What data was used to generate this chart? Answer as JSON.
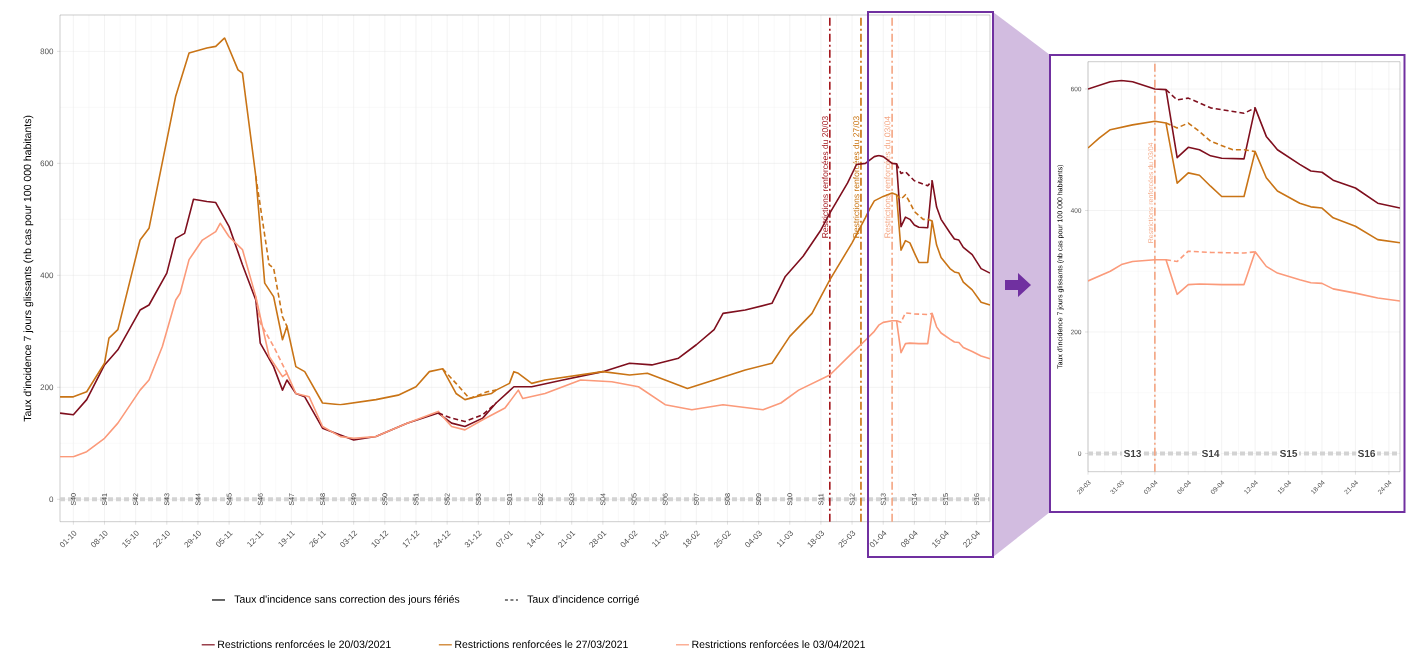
{
  "chart_data": [
    {
      "type": "line",
      "ylabel": "Taux d'incidence 7 jours glissants (nb cas pour 100 000 habitants)",
      "xlim": [
        "2020-09-28",
        "2021-04-25"
      ],
      "ylim": [
        -40,
        865
      ],
      "xticks": [
        {
          "value": "2020-10-01",
          "label": "01-10"
        },
        {
          "value": "2020-10-08",
          "label": "08-10"
        },
        {
          "value": "2020-10-15",
          "label": "15-10"
        },
        {
          "value": "2020-10-22",
          "label": "22-10"
        },
        {
          "value": "2020-10-29",
          "label": "29-10"
        },
        {
          "value": "2020-11-05",
          "label": "05-11"
        },
        {
          "value": "2020-11-12",
          "label": "12-11"
        },
        {
          "value": "2020-11-19",
          "label": "19-11"
        },
        {
          "value": "2020-11-26",
          "label": "26-11"
        },
        {
          "value": "2020-12-03",
          "label": "03-12"
        },
        {
          "value": "2020-12-10",
          "label": "10-12"
        },
        {
          "value": "2020-12-17",
          "label": "17-12"
        },
        {
          "value": "2020-12-24",
          "label": "24-12"
        },
        {
          "value": "2020-12-31",
          "label": "31-12"
        },
        {
          "value": "2021-01-07",
          "label": "07-01"
        },
        {
          "value": "2021-01-14",
          "label": "14-01"
        },
        {
          "value": "2021-01-21",
          "label": "21-01"
        },
        {
          "value": "2021-01-28",
          "label": "28-01"
        },
        {
          "value": "2021-02-04",
          "label": "04-02"
        },
        {
          "value": "2021-02-11",
          "label": "11-02"
        },
        {
          "value": "2021-02-18",
          "label": "18-02"
        },
        {
          "value": "2021-02-25",
          "label": "25-02"
        },
        {
          "value": "2021-03-04",
          "label": "04-03"
        },
        {
          "value": "2021-03-11",
          "label": "11-03"
        },
        {
          "value": "2021-03-18",
          "label": "18-03"
        },
        {
          "value": "2021-03-25",
          "label": "25-03"
        },
        {
          "value": "2021-04-01",
          "label": "01-04"
        },
        {
          "value": "2021-04-08",
          "label": "08-04"
        },
        {
          "value": "2021-04-15",
          "label": "15-04"
        },
        {
          "value": "2021-04-22",
          "label": "22-04"
        }
      ],
      "yticks": [
        0,
        200,
        400,
        600,
        800
      ],
      "x2lim": [
        "2020-09-28",
        "2021-04-25"
      ],
      "x2ticks": [
        {
          "value": "2020-10-01",
          "label": "S40"
        },
        {
          "value": "2020-10-08",
          "label": "S41"
        },
        {
          "value": "2020-10-15",
          "label": "S42"
        },
        {
          "value": "2020-10-22",
          "label": "S43"
        },
        {
          "value": "2020-10-29",
          "label": "S44"
        },
        {
          "value": "2020-11-05",
          "label": "S45"
        },
        {
          "value": "2020-11-12",
          "label": "S46"
        },
        {
          "value": "2020-11-19",
          "label": "S47"
        },
        {
          "value": "2020-11-26",
          "label": "S48"
        },
        {
          "value": "2020-12-03",
          "label": "S49"
        },
        {
          "value": "2020-12-10",
          "label": "S50"
        },
        {
          "value": "2020-12-17",
          "label": "S51"
        },
        {
          "value": "2020-12-24",
          "label": "S52"
        },
        {
          "value": "2020-12-31",
          "label": "S53"
        },
        {
          "value": "2021-01-07",
          "label": "S01"
        },
        {
          "value": "2021-01-14",
          "label": "S02"
        },
        {
          "value": "2021-01-21",
          "label": "S03"
        },
        {
          "value": "2021-01-28",
          "label": "S04"
        },
        {
          "value": "2021-02-04",
          "label": "S05"
        },
        {
          "value": "2021-02-11",
          "label": "S06"
        },
        {
          "value": "2021-02-18",
          "label": "S07"
        },
        {
          "value": "2021-02-25",
          "label": "S08"
        },
        {
          "value": "2021-03-04",
          "label": "S09"
        },
        {
          "value": "2021-03-11",
          "label": "S10"
        },
        {
          "value": "2021-03-18",
          "label": "S11"
        },
        {
          "value": "2021-03-25",
          "label": "S12"
        },
        {
          "value": "2021-04-01",
          "label": "S13"
        },
        {
          "value": "2021-04-08",
          "label": "S14"
        },
        {
          "value": "2021-04-15",
          "label": "S15"
        },
        {
          "value": "2021-04-22",
          "label": "S16"
        }
      ],
      "grid": true,
      "legend": "bottom",
      "annotations": [
        "Taux d'incidence sans correction des jours fériés",
        "Taux d'incidence corrigé"
      ],
      "ref_lines": [
        {
          "axis": "y",
          "value": 0,
          "color": "#d3d3d3",
          "line_style": "dashed"
        },
        {
          "axis": "x",
          "value": "2021-03-20",
          "label": "Restrictions renforcées du 20/03",
          "color": "#a3161c",
          "line_style": "dashdot"
        },
        {
          "axis": "x",
          "value": "2021-03-27",
          "label": "Restrictions renforcées du 27/03",
          "color": "#c8700a",
          "line_style": "dashdot"
        },
        {
          "axis": "x",
          "value": "2021-04-03",
          "label": "Restrictions renforcées du 03/04",
          "color": "#f4a582",
          "line_style": "dashdot"
        }
      ],
      "series": [
        {
          "name": "Restrictions renforcées le 20/03/2021",
          "color": "#7f0f1e",
          "x": [
            "2020-09-28",
            "2020-10-01",
            "2020-10-04",
            "2020-10-08",
            "2020-10-11",
            "2020-10-16",
            "2020-10-18",
            "2020-10-22",
            "2020-10-24",
            "2020-10-26",
            "2020-10-28",
            "2020-10-31",
            "2020-11-02",
            "2020-11-05",
            "2020-11-08",
            "2020-11-11",
            "2020-11-12",
            "2020-11-15",
            "2020-11-17",
            "2020-11-18",
            "2020-11-20",
            "2020-11-22",
            "2020-11-26",
            "2020-11-30",
            "2020-12-03",
            "2020-12-08",
            "2020-12-15",
            "2020-12-22",
            "2020-12-25",
            "2020-12-28",
            "2021-01-01",
            "2021-01-04",
            "2021-01-08",
            "2021-01-12",
            "2021-01-19",
            "2021-01-28",
            "2021-02-03",
            "2021-02-08",
            "2021-02-14",
            "2021-02-18",
            "2021-02-22",
            "2021-02-24",
            "2021-03-01",
            "2021-03-07",
            "2021-03-10",
            "2021-03-14",
            "2021-03-18",
            "2021-03-20",
            "2021-03-24",
            "2021-03-26",
            "2021-03-28",
            "2021-03-30",
            "2021-03-31",
            "2021-04-01",
            "2021-04-03",
            "2021-04-04",
            "2021-04-05",
            "2021-04-06",
            "2021-04-07",
            "2021-04-08",
            "2021-04-09",
            "2021-04-11",
            "2021-04-12",
            "2021-04-13",
            "2021-04-14",
            "2021-04-16",
            "2021-04-17",
            "2021-04-18",
            "2021-04-19",
            "2021-04-21",
            "2021-04-23",
            "2021-04-25"
          ],
          "values": [
            154,
            151,
            178,
            240,
            267,
            338,
            347,
            404,
            466,
            475,
            536,
            532,
            530,
            487,
            419,
            356,
            279,
            237,
            195,
            213,
            189,
            183,
            127,
            115,
            106,
            112,
            136,
            154,
            136,
            130,
            145,
            172,
            201,
            201,
            213,
            228,
            243,
            240,
            252,
            276,
            303,
            332,
            338,
            350,
            398,
            434,
            481,
            511,
            565,
            598,
            600,
            612,
            614,
            612,
            600,
            599,
            487,
            504,
            500,
            490,
            486,
            485,
            569,
            522,
            500,
            476,
            465,
            463,
            450,
            437,
            412,
            404
          ]
        },
        {
          "name": "Restrictions renforcées le 27/03/2021",
          "color": "#c97416",
          "x": [
            "2020-09-28",
            "2020-10-01",
            "2020-10-04",
            "2020-10-08",
            "2020-10-09",
            "2020-10-11",
            "2020-10-16",
            "2020-10-18",
            "2020-10-24",
            "2020-10-27",
            "2020-10-31",
            "2020-11-02",
            "2020-11-04",
            "2020-11-07",
            "2020-11-08",
            "2020-11-11",
            "2020-11-13",
            "2020-11-15",
            "2020-11-17",
            "2020-11-18",
            "2020-11-20",
            "2020-11-22",
            "2020-11-26",
            "2020-11-30",
            "2020-12-08",
            "2020-12-13",
            "2020-12-17",
            "2020-12-20",
            "2020-12-23",
            "2020-12-26",
            "2020-12-28",
            "2020-12-31",
            "2021-01-03",
            "2021-01-04",
            "2021-01-07",
            "2021-01-08",
            "2021-01-09",
            "2021-01-12",
            "2021-01-15",
            "2021-01-28",
            "2021-02-03",
            "2021-02-07",
            "2021-02-16",
            "2021-02-22",
            "2021-03-01",
            "2021-03-07",
            "2021-03-11",
            "2021-03-16",
            "2021-03-20",
            "2021-03-25",
            "2021-03-28",
            "2021-03-29",
            "2021-03-30",
            "2021-04-01",
            "2021-04-03",
            "2021-04-04",
            "2021-04-05",
            "2021-04-06",
            "2021-04-07",
            "2021-04-08",
            "2021-04-09",
            "2021-04-11",
            "2021-04-12",
            "2021-04-13",
            "2021-04-14",
            "2021-04-16",
            "2021-04-17",
            "2021-04-18",
            "2021-04-19",
            "2021-04-21",
            "2021-04-23",
            "2021-04-25"
          ],
          "values": [
            183,
            183,
            192,
            243,
            288,
            303,
            463,
            484,
            720,
            797,
            806,
            809,
            824,
            767,
            761,
            577,
            386,
            362,
            285,
            309,
            237,
            228,
            172,
            169,
            178,
            186,
            201,
            228,
            233,
            189,
            178,
            184,
            189,
            195,
            207,
            228,
            225,
            207,
            213,
            228,
            222,
            225,
            198,
            213,
            231,
            243,
            291,
            332,
            392,
            458,
            503,
            519,
            533,
            541,
            547,
            544,
            445,
            462,
            458,
            440,
            423,
            423,
            497,
            454,
            432,
            412,
            406,
            404,
            388,
            374,
            352,
            347
          ]
        },
        {
          "name": "Restrictions renforcées le 03/04/2021",
          "color": "#fb9a7a",
          "x": [
            "2020-09-28",
            "2020-10-01",
            "2020-10-04",
            "2020-10-08",
            "2020-10-11",
            "2020-10-16",
            "2020-10-18",
            "2020-10-21",
            "2020-10-24",
            "2020-10-25",
            "2020-10-27",
            "2020-10-30",
            "2020-11-02",
            "2020-11-03",
            "2020-11-05",
            "2020-11-08",
            "2020-11-11",
            "2020-11-14",
            "2020-11-17",
            "2020-11-18",
            "2020-11-20",
            "2020-11-23",
            "2020-11-26",
            "2020-11-30",
            "2020-12-03",
            "2020-12-08",
            "2020-12-15",
            "2020-12-22",
            "2020-12-25",
            "2020-12-28",
            "2021-01-01",
            "2021-01-06",
            "2021-01-09",
            "2021-01-10",
            "2021-01-15",
            "2021-01-23",
            "2021-01-30",
            "2021-02-05",
            "2021-02-11",
            "2021-02-17",
            "2021-02-24",
            "2021-03-05",
            "2021-03-09",
            "2021-03-13",
            "2021-03-20",
            "2021-03-25",
            "2021-03-28",
            "2021-03-30",
            "2021-03-31",
            "2021-04-01",
            "2021-04-03",
            "2021-04-04",
            "2021-04-05",
            "2021-04-06",
            "2021-04-07",
            "2021-04-09",
            "2021-04-11",
            "2021-04-12",
            "2021-04-13",
            "2021-04-14",
            "2021-04-16",
            "2021-04-17",
            "2021-04-18",
            "2021-04-19",
            "2021-04-21",
            "2021-04-23",
            "2021-04-25"
          ],
          "values": [
            76,
            76,
            85,
            109,
            136,
            195,
            213,
            273,
            356,
            368,
            428,
            463,
            478,
            493,
            469,
            446,
            362,
            255,
            219,
            225,
            189,
            183,
            130,
            112,
            109,
            112,
            136,
            157,
            130,
            124,
            142,
            163,
            195,
            180,
            189,
            213,
            210,
            201,
            169,
            160,
            169,
            160,
            172,
            195,
            222,
            261,
            284,
            300,
            311,
            316,
            319,
            319,
            262,
            278,
            279,
            278,
            278,
            332,
            308,
            297,
            286,
            281,
            280,
            271,
            264,
            256,
            251
          ]
        },
        {
          "color": "#7f0f1e",
          "line_style": "dashed",
          "x": [
            "2020-12-22",
            "2020-12-25",
            "2020-12-28",
            "2021-01-01",
            "2021-01-04",
            "2021-01-20",
            "2021-04-04",
            "2021-04-05",
            "2021-04-06",
            "2021-04-08",
            "2021-04-10",
            "2021-04-11",
            "2021-04-12"
          ],
          "values": [
            154,
            145,
            139,
            151,
            172,
            null,
            599,
            582,
            585,
            569,
            563,
            560,
            569
          ]
        },
        {
          "color": "#c97416",
          "line_style": "dashed",
          "x": [
            "2020-11-11",
            "2020-11-14",
            "2020-11-15",
            "2020-11-17",
            "2020-11-18",
            "2020-12-01",
            "2020-12-23",
            "2020-12-26",
            "2020-12-29",
            "2021-01-02",
            "2021-01-04",
            "2021-02-01",
            "2021-04-04",
            "2021-04-05",
            "2021-04-06",
            "2021-04-07",
            "2021-04-08",
            "2021-04-10",
            "2021-04-11",
            "2021-04-12"
          ],
          "values": [
            577,
            419,
            413,
            326,
            309,
            null,
            233,
            207,
            180,
            192,
            195,
            null,
            544,
            536,
            544,
            530,
            514,
            500,
            500,
            497
          ]
        },
        {
          "color": "#fb9a7a",
          "line_style": "dashed",
          "x": [
            "2020-11-11",
            "2020-11-12",
            "2020-11-15",
            "2020-11-18",
            "2020-12-01",
            "2021-04-04",
            "2021-04-05",
            "2021-04-06",
            "2021-04-08",
            "2021-04-11",
            "2021-04-12"
          ],
          "values": [
            362,
            315,
            273,
            225,
            null,
            319,
            316,
            333,
            331,
            330,
            332
          ]
        }
      ]
    },
    {
      "type": "line",
      "ylabel": "Taux d'incidence 7 jours glissants (nb cas pour 100 000 habitants)",
      "xlim": [
        "2021-03-28",
        "2021-04-25"
      ],
      "ylim": [
        -30,
        645
      ],
      "xticks": [
        {
          "value": "2021-03-28",
          "label": "28-03"
        },
        {
          "value": "2021-03-31",
          "label": "31-03"
        },
        {
          "value": "2021-04-03",
          "label": "03-04"
        },
        {
          "value": "2021-04-06",
          "label": "06-04"
        },
        {
          "value": "2021-04-09",
          "label": "09-04"
        },
        {
          "value": "2021-04-12",
          "label": "12-04"
        },
        {
          "value": "2021-04-15",
          "label": "15-04"
        },
        {
          "value": "2021-04-18",
          "label": "18-04"
        },
        {
          "value": "2021-04-21",
          "label": "21-04"
        },
        {
          "value": "2021-04-24",
          "label": "24-04"
        }
      ],
      "yticks": [
        0,
        200,
        400,
        600
      ],
      "x2lim": [
        "2021-03-28",
        "2021-04-25"
      ],
      "x2ticks": [
        {
          "value": "2021-04-01",
          "label": "S13"
        },
        {
          "value": "2021-04-08",
          "label": "S14"
        },
        {
          "value": "2021-04-15",
          "label": "S15"
        },
        {
          "value": "2021-04-22",
          "label": "S16"
        }
      ],
      "grid": true,
      "ref_lines": [
        {
          "axis": "y",
          "value": 0,
          "color": "#d3d3d3",
          "line_style": "dashed"
        },
        {
          "axis": "x",
          "value": "2021-04-03",
          "label": "Restrictions renforcées du 03/04",
          "color": "#f4a582",
          "line_style": "dashdot"
        }
      ],
      "series": [
        {
          "color": "#7f0f1e",
          "x": [
            "2021-03-28",
            "2021-03-30",
            "2021-03-31",
            "2021-04-01",
            "2021-04-03",
            "2021-04-04",
            "2021-04-05",
            "2021-04-06",
            "2021-04-07",
            "2021-04-08",
            "2021-04-09",
            "2021-04-11",
            "2021-04-12",
            "2021-04-13",
            "2021-04-14",
            "2021-04-16",
            "2021-04-17",
            "2021-04-18",
            "2021-04-19",
            "2021-04-21",
            "2021-04-23",
            "2021-04-25"
          ],
          "values": [
            600,
            612,
            614,
            612,
            600,
            599,
            487,
            504,
            500,
            490,
            486,
            485,
            569,
            522,
            500,
            476,
            465,
            463,
            450,
            437,
            412,
            404
          ]
        },
        {
          "color": "#c97416",
          "x": [
            "2021-03-28",
            "2021-03-29",
            "2021-03-30",
            "2021-04-01",
            "2021-04-03",
            "2021-04-04",
            "2021-04-05",
            "2021-04-06",
            "2021-04-07",
            "2021-04-08",
            "2021-04-09",
            "2021-04-11",
            "2021-04-12",
            "2021-04-13",
            "2021-04-14",
            "2021-04-16",
            "2021-04-17",
            "2021-04-18",
            "2021-04-19",
            "2021-04-21",
            "2021-04-23",
            "2021-04-25"
          ],
          "values": [
            503,
            519,
            533,
            541,
            547,
            544,
            445,
            462,
            458,
            440,
            423,
            423,
            497,
            454,
            432,
            412,
            406,
            404,
            388,
            374,
            352,
            347
          ]
        },
        {
          "color": "#fb9a7a",
          "x": [
            "2021-03-28",
            "2021-03-30",
            "2021-03-31",
            "2021-04-01",
            "2021-04-03",
            "2021-04-04",
            "2021-04-05",
            "2021-04-06",
            "2021-04-07",
            "2021-04-09",
            "2021-04-11",
            "2021-04-12",
            "2021-04-13",
            "2021-04-14",
            "2021-04-16",
            "2021-04-17",
            "2021-04-18",
            "2021-04-19",
            "2021-04-21",
            "2021-04-23",
            "2021-04-25"
          ],
          "values": [
            284,
            300,
            311,
            316,
            319,
            319,
            262,
            278,
            279,
            278,
            278,
            332,
            308,
            297,
            286,
            281,
            280,
            271,
            264,
            256,
            251
          ]
        },
        {
          "color": "#7f0f1e",
          "line_style": "dashed",
          "x": [
            "2021-04-04",
            "2021-04-05",
            "2021-04-06",
            "2021-04-08",
            "2021-04-10",
            "2021-04-11",
            "2021-04-12"
          ],
          "values": [
            599,
            582,
            585,
            569,
            563,
            560,
            569
          ]
        },
        {
          "color": "#c97416",
          "line_style": "dashed",
          "x": [
            "2021-04-04",
            "2021-04-05",
            "2021-04-06",
            "2021-04-07",
            "2021-04-08",
            "2021-04-10",
            "2021-04-11",
            "2021-04-12"
          ],
          "values": [
            544,
            536,
            544,
            530,
            514,
            500,
            500,
            497
          ]
        },
        {
          "color": "#fb9a7a",
          "line_style": "dashed",
          "x": [
            "2021-04-04",
            "2021-04-05",
            "2021-04-06",
            "2021-04-08",
            "2021-04-11",
            "2021-04-12"
          ],
          "values": [
            319,
            316,
            333,
            331,
            330,
            332
          ]
        }
      ]
    }
  ]
}
